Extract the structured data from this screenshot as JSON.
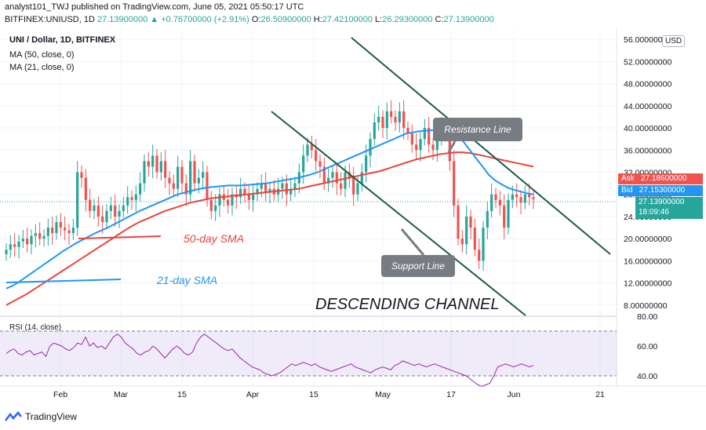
{
  "header": {
    "publisher_line": "analyst101_TWJ published on TradingView.com, June 05, 2021 05:50:17 UTC",
    "symbol": "BITFINEX:UNIUSD, 1D",
    "close": "27.13900000",
    "change": "+0.76700000 (+2.91%)",
    "o_label": "O:",
    "o": "26.50900000",
    "h_label": "H:",
    "h": "27.42100000",
    "l_label": "L:",
    "l": "26.29300000",
    "c_label": "C:",
    "c": "27.13900000"
  },
  "legend": {
    "title": "UNI / Dollar, 1D, BITFINEX",
    "ma50": "MA (50, close, 0)",
    "ma21": "MA (21, close, 0)"
  },
  "annotations": {
    "resistance": "Resistance Line",
    "support": "Support Line",
    "sma50": "50-day SMA",
    "sma21": "21-day SMA",
    "channel": "DESCENDING CHANNEL"
  },
  "price_tags": {
    "ask_label": "Ask",
    "ask": "27.18600000",
    "bid_label": "Bid",
    "bid": "27.15300000",
    "last": "27.13900000",
    "countdown": "18:09:46"
  },
  "currency": "USD",
  "rsi": {
    "label": "RSI (14, close)",
    "ticks": [
      "80.00",
      "60.00",
      "40.00"
    ]
  },
  "footer": {
    "brand": "TradingView"
  },
  "colors": {
    "up": "#26a69a",
    "down": "#ef5350",
    "ma50": "#e8453c",
    "ma21": "#2196f3",
    "rsi": "#9c27b0",
    "channel": "#1e5b47"
  },
  "chart_data": {
    "type": "candlestick",
    "y_ticks": [
      "56.00000000",
      "52.00000000",
      "48.00000000",
      "44.00000000",
      "40.00000000",
      "36.00000000",
      "32.00000000",
      "28.00000000",
      "24.00000000",
      "20.00000000",
      "16.00000000",
      "12.00000000",
      "8.00000000"
    ],
    "x_ticks": [
      "15",
      "Feb",
      "Mar",
      "15",
      "Apr",
      "15",
      "May",
      "17",
      "Jun",
      "21"
    ],
    "ylim": [
      6,
      58
    ],
    "close_series": [
      18,
      19,
      18.5,
      19.5,
      20,
      19,
      20.5,
      21,
      20,
      20.5,
      22,
      21,
      23,
      22,
      21.5,
      21,
      22,
      32,
      31,
      27,
      25,
      26,
      24,
      23,
      25,
      26,
      24,
      25,
      26,
      27.5,
      27,
      28,
      30,
      34,
      33,
      35,
      32,
      34,
      31,
      30,
      29,
      33,
      30,
      28,
      34,
      30,
      31,
      32,
      27,
      25,
      26,
      28,
      27,
      26,
      28,
      27.5,
      29,
      28,
      27,
      28,
      29,
      30,
      28.5,
      29,
      28,
      29,
      30,
      28,
      29,
      30,
      32,
      35,
      37,
      36,
      34,
      33,
      30,
      31,
      32,
      30,
      29,
      32,
      31,
      28,
      30,
      32,
      35,
      38,
      41,
      42,
      40,
      43,
      42,
      41,
      43,
      40,
      39,
      37,
      36,
      38,
      40,
      37,
      36,
      38,
      40,
      39,
      34,
      26,
      20,
      19,
      24,
      22,
      18,
      16,
      22,
      25,
      28,
      27,
      26,
      22,
      27,
      28,
      27.5,
      26.5,
      28,
      27.5,
      27.139
    ],
    "ma50_series": [
      8,
      8.5,
      9,
      9.5,
      10,
      10.6,
      11.2,
      11.8,
      12.4,
      13,
      13.6,
      14.2,
      14.8,
      15.4,
      16,
      16.6,
      17.2,
      17.8,
      18.4,
      19,
      19.6,
      20.2,
      20.8,
      21.4,
      22,
      22.5,
      23,
      23.4,
      23.8,
      24.2,
      24.6,
      25,
      25.3,
      25.6,
      25.9,
      26.2,
      26.5,
      26.7,
      26.9,
      27.1,
      27.3,
      27.4,
      27.5,
      27.6,
      27.7,
      27.8,
      27.9,
      28,
      28.1,
      28.2,
      28.3,
      28.4,
      28.5,
      28.6,
      28.7,
      28.8,
      28.9,
      29,
      29.2,
      29.4,
      29.6,
      29.8,
      30,
      30.2,
      30.4,
      30.6,
      30.8,
      31,
      31.2,
      31.4,
      31.6,
      31.8,
      32,
      32.2,
      32.5,
      32.8,
      33.1,
      33.4,
      33.7,
      34,
      34.3,
      34.5,
      34.7,
      34.9,
      35.1,
      35.3,
      35.4,
      35.5,
      35.6,
      35.6,
      35.5,
      35.4,
      35.2,
      35,
      34.8,
      34.6,
      34.4,
      34.2,
      34,
      33.8,
      33.6,
      33.4,
      33.2,
      33
    ],
    "ma21_series": [
      11,
      11.5,
      12.2,
      13,
      13.8,
      14.6,
      15.4,
      16.2,
      17,
      17.8,
      18.5,
      19.2,
      19.8,
      20.4,
      21,
      21.5,
      22,
      22.6,
      23.2,
      23.8,
      24.4,
      25,
      25.5,
      26,
      26.5,
      27,
      27.5,
      28,
      28.3,
      28.6,
      28.9,
      29.1,
      29.3,
      29.4,
      29.5,
      29.6,
      29.6,
      29.6,
      29.7,
      29.8,
      29.9,
      30,
      30.2,
      30.4,
      30.6,
      30.8,
      31,
      31.3,
      31.6,
      32,
      32.5,
      33,
      33.5,
      34,
      34.5,
      35,
      35.5,
      36,
      36.5,
      37,
      37.5,
      38,
      38.5,
      39,
      39.2,
      39.4,
      39.5,
      39.6,
      39.5,
      39.3,
      39,
      38.5,
      37.5,
      36,
      34.5,
      33,
      31.5,
      30.5,
      29.8,
      29.2,
      28.8,
      28.5,
      28.2,
      28
    ],
    "rsi_series": [
      55,
      57,
      58,
      55,
      54,
      56,
      57,
      54,
      55,
      56,
      53,
      60,
      62,
      61,
      60,
      58,
      57,
      59,
      62,
      61,
      66,
      60,
      62,
      59,
      60,
      58,
      62,
      66,
      68,
      66,
      62,
      60,
      58,
      55,
      54,
      56,
      57,
      60,
      58,
      55,
      52,
      55,
      58,
      60,
      58,
      55,
      54,
      56,
      62,
      66,
      68,
      66,
      64,
      62,
      60,
      58,
      57,
      58,
      55,
      52,
      50,
      48,
      46,
      45,
      44,
      42,
      41,
      40,
      41,
      42,
      44,
      46,
      48,
      47,
      48,
      49,
      48,
      47,
      48,
      46,
      45,
      44,
      43,
      44,
      45,
      46,
      47,
      48,
      46,
      45,
      44,
      43,
      42,
      44,
      45,
      46,
      45,
      44,
      47,
      48,
      50,
      49,
      48,
      47,
      48,
      47,
      46,
      47,
      48,
      47,
      46,
      45,
      44,
      43,
      42,
      41,
      40,
      38,
      36,
      34,
      33,
      34,
      35,
      40,
      46,
      47,
      48,
      47,
      46,
      47,
      48,
      47,
      46,
      47
    ]
  }
}
